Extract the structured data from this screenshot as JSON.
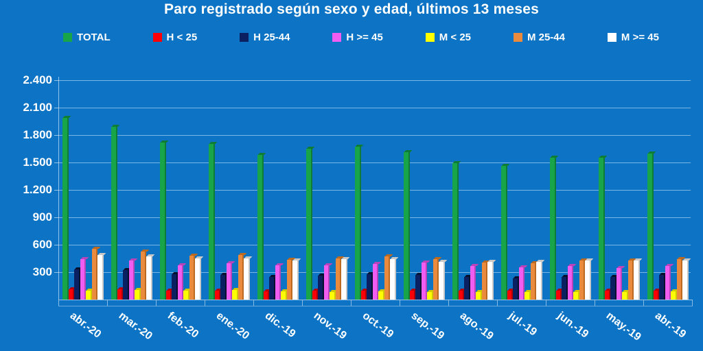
{
  "title": "Paro registrado según sexo y edad, últimos 13 meses",
  "colors": {
    "background": "#0d73c5",
    "grid": "#dbebfa",
    "text": "#ffffff"
  },
  "chart_data": {
    "type": "bar",
    "title": "Paro registrado según sexo y edad, últimos 13 meses",
    "legend_position": "top",
    "grid": true,
    "categories": [
      "abr.-20",
      "mar.-20",
      "feb.-20",
      "ene.-20",
      "dic.-19",
      "nov.-19",
      "oct.-19",
      "sep.-19",
      "ago.-19",
      "jul.-19",
      "jun.-19",
      "may.-19",
      "abr.-19"
    ],
    "yticks": [
      300,
      600,
      900,
      1200,
      1500,
      1800,
      2100,
      2400
    ],
    "ytick_labels": [
      "300",
      "600",
      "900",
      "1.200",
      "1.500",
      "1.800",
      "2.100",
      "2.400"
    ],
    "ylim": [
      0,
      2430
    ],
    "series": [
      {
        "name": "TOTAL",
        "color": "#18a54a",
        "dark": "#0e7c34",
        "values": [
          1990,
          1890,
          1715,
          1700,
          1580,
          1650,
          1670,
          1615,
          1495,
          1465,
          1550,
          1555,
          1600
        ]
      },
      {
        "name": "H < 25",
        "color": "#fb0007",
        "dark": "#b50005",
        "values": [
          115,
          110,
          100,
          100,
          90,
          100,
          100,
          95,
          95,
          95,
          95,
          95,
          100
        ]
      },
      {
        "name": "H 25-44",
        "color": "#0b2060",
        "dark": "#05102f",
        "values": [
          330,
          320,
          275,
          270,
          250,
          265,
          275,
          270,
          245,
          230,
          245,
          245,
          270
        ]
      },
      {
        "name": "H >= 45",
        "color": "#f05df0",
        "dark": "#b944b9",
        "values": [
          440,
          425,
          375,
          400,
          375,
          375,
          390,
          405,
          370,
          355,
          370,
          345,
          370
        ]
      },
      {
        "name": "M < 25",
        "color": "#ffff00",
        "dark": "#d2ca00",
        "values": [
          95,
          105,
          95,
          105,
          90,
          80,
          90,
          80,
          80,
          80,
          80,
          80,
          90
        ]
      },
      {
        "name": "M 25-44",
        "color": "#e98a3d",
        "dark": "#bc6a1f",
        "values": [
          555,
          525,
          480,
          485,
          435,
          450,
          470,
          440,
          405,
          395,
          430,
          430,
          440
        ]
      },
      {
        "name": "M >= 45",
        "color": "#ffffff",
        "dark": "#c9c9c9",
        "values": [
          485,
          475,
          450,
          450,
          425,
          445,
          440,
          410,
          410,
          410,
          425,
          430,
          425
        ]
      }
    ]
  }
}
